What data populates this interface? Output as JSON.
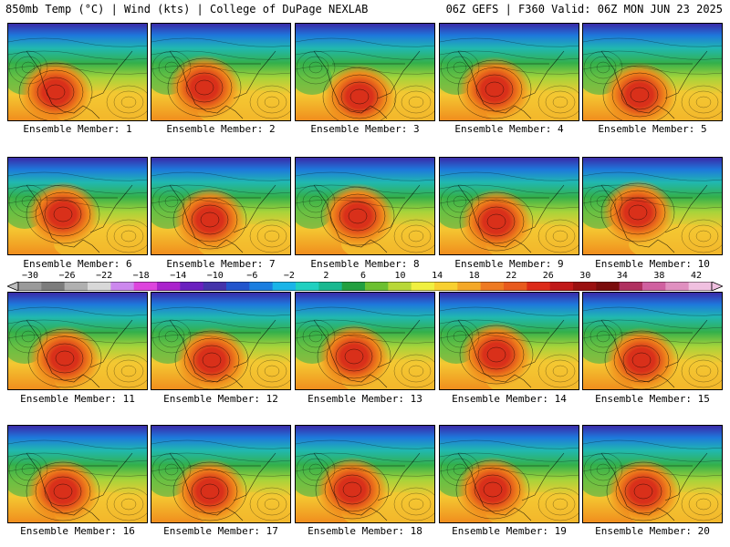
{
  "header": {
    "left": "850mb Temp (°C) | Wind (kts) | College of DuPage NEXLAB",
    "right": "06Z GEFS | F360 Valid: 06Z MON JUN 23 2025"
  },
  "panels": [
    {
      "label": "Ensemble Member: 1"
    },
    {
      "label": "Ensemble Member: 2"
    },
    {
      "label": "Ensemble Member: 3"
    },
    {
      "label": "Ensemble Member: 4"
    },
    {
      "label": "Ensemble Member: 5"
    },
    {
      "label": "Ensemble Member: 6"
    },
    {
      "label": "Ensemble Member: 7"
    },
    {
      "label": "Ensemble Member: 8"
    },
    {
      "label": "Ensemble Member: 9"
    },
    {
      "label": "Ensemble Member: 10"
    },
    {
      "label": "Ensemble Member: 11"
    },
    {
      "label": "Ensemble Member: 12"
    },
    {
      "label": "Ensemble Member: 13"
    },
    {
      "label": "Ensemble Member: 14"
    },
    {
      "label": "Ensemble Member: 15"
    },
    {
      "label": "Ensemble Member: 16"
    },
    {
      "label": "Ensemble Member: 17"
    },
    {
      "label": "Ensemble Member: 18"
    },
    {
      "label": "Ensemble Member: 19"
    },
    {
      "label": "Ensemble Member: 20"
    }
  ],
  "colorbar": {
    "tick_labels": [
      "−30",
      "−26",
      "−22",
      "−18",
      "−14",
      "−10",
      "−6",
      "−2",
      "2",
      "6",
      "10",
      "14",
      "18",
      "22",
      "26",
      "30",
      "34",
      "38",
      "42"
    ],
    "colors": [
      "#9a9a9a",
      "#7c7c7c",
      "#b0b0b0",
      "#d8d8d8",
      "#cc88ee",
      "#dd44dd",
      "#aa22cc",
      "#6a1fbf",
      "#4433aa",
      "#2255cc",
      "#1a7ee0",
      "#19b4e8",
      "#20d0c0",
      "#18b890",
      "#22a040",
      "#6cc030",
      "#b8d838",
      "#f0f040",
      "#f8d030",
      "#f4a828",
      "#ee7a22",
      "#e85a1e",
      "#dc2a18",
      "#c01818",
      "#9a1010",
      "#7a0c0c",
      "#b03060",
      "#d060a0",
      "#e090c0",
      "#f0c0e0"
    ]
  },
  "map_palette": {
    "hot": "#d9301a",
    "warm": "#f08a1c",
    "mild": "#f4c832",
    "cool": "#a8d43a",
    "green": "#34b04a",
    "teal": "#20b8b0",
    "cold": "#1e78dc",
    "frigid": "#3a2aa8"
  }
}
